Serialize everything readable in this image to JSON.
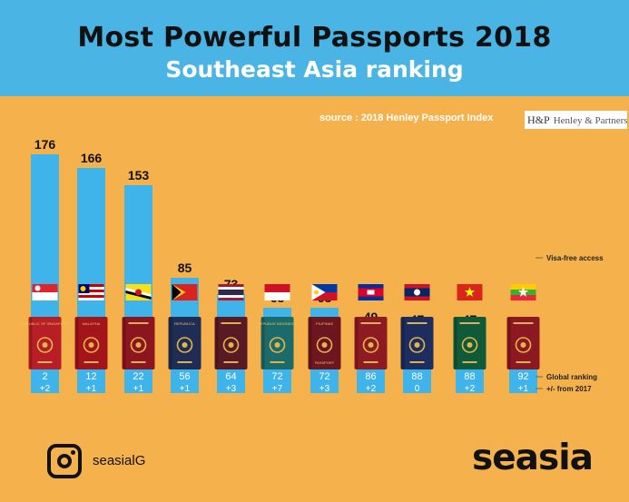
{
  "header": {
    "title": "Most Powerful Passports 2018",
    "subtitle": "Southeast Asia ranking"
  },
  "source": {
    "text": "source :  2018 Henley Passport Index",
    "logo_monogram": "H&P",
    "logo_text": "Henley & Partners"
  },
  "colors": {
    "background": "#f5b14b",
    "header": "#4ab4e4",
    "bar": "#3fb4ea"
  },
  "chart_data": {
    "type": "bar",
    "title": "Most Powerful Passports 2018",
    "subtitle": "Southeast Asia ranking",
    "categories": [
      "Singapore",
      "Malaysia",
      "Brunei",
      "Timor-Leste",
      "Thailand",
      "Indonesia",
      "Philippines",
      "Cambodia",
      "Laos",
      "Vietnam",
      "Myanmar"
    ],
    "values": [
      176,
      166,
      153,
      85,
      73,
      63,
      63,
      49,
      47,
      47,
      42
    ],
    "value_label": "Visa-free access",
    "global_ranking": [
      2,
      12,
      22,
      56,
      64,
      72,
      72,
      86,
      88,
      88,
      92
    ],
    "global_ranking_label": "Global ranking",
    "change_from_2017": [
      "+2",
      "+1",
      "+1",
      "+1",
      "+3",
      "+7",
      "+3",
      "+2",
      "0",
      "+2",
      "+1"
    ],
    "change_label": "+/- from 2017",
    "passport_titles": [
      "REPUBLIC OF SINGAPORE",
      "MALAYSIA",
      "",
      "REPUBLICA",
      "",
      "REPUBLIK INDONESIA",
      "PILIPINAS",
      "",
      "",
      "",
      ""
    ],
    "passport_subtitles": [
      "",
      "",
      "",
      "",
      "",
      "",
      "PASSPORT",
      "",
      "",
      "",
      ""
    ],
    "passport_colors": [
      "#b81e26",
      "#a3151b",
      "#8c1520",
      "#1f2d55",
      "#5a1a24",
      "#1c6b6a",
      "#6e1620",
      "#8e1a22",
      "#1c2d5e",
      "#0f5a38",
      "#8c1822"
    ],
    "flags": [
      "singapore-flag",
      "malaysia-flag",
      "brunei-flag",
      "timor-leste-flag",
      "thailand-flag",
      "indonesia-flag",
      "philippines-flag",
      "cambodia-flag",
      "laos-flag",
      "vietnam-flag",
      "myanmar-flag"
    ],
    "ylim": [
      0,
      176
    ],
    "grid": false,
    "legend": "right"
  },
  "footer": {
    "handle": "seasialG",
    "brand": "seasia"
  }
}
